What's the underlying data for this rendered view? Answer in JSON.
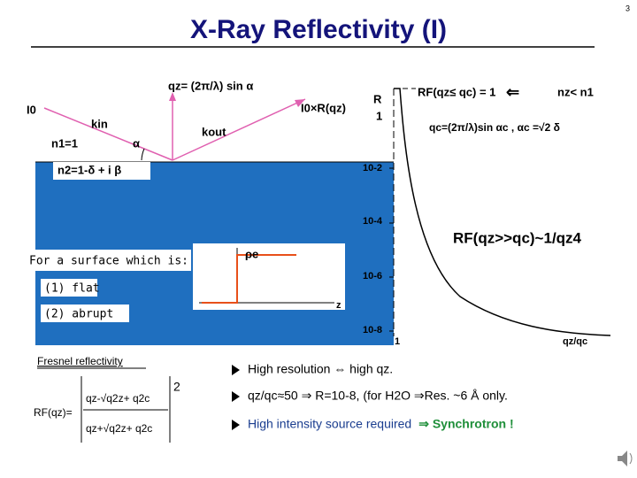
{
  "page_number": "3",
  "title": "X-Ray Reflectivity (I)",
  "diagram": {
    "qz_formula": "qz= (2π/λ) sin α",
    "incident": "I0",
    "k_in": "kin",
    "n1": "n1=1",
    "angle": "α",
    "k_out": "kout",
    "reflected": "I0×R(qz)",
    "n2": "n2=1-δ + i β"
  },
  "plot": {
    "y_label": "R",
    "y_one": "1",
    "y_ticks": [
      "10-2",
      "10-4",
      "10-6",
      "10-8"
    ],
    "x_one": "1",
    "x_label": "qz/qc",
    "rf_below": "RF(qz≤ qc) = 1",
    "implies_left": "⇐",
    "nz_condition": "nz< n1",
    "qc_def": "qc=(2π/λ)sin αc , αc =√2 δ",
    "rf_above": "RF(qz>>qc)~1/qz4"
  },
  "surface": {
    "heading": "For a surface which is:",
    "items": [
      "(1) flat",
      "(2) abrupt"
    ],
    "profile_y": "ρe",
    "profile_x": "z"
  },
  "fresnel": {
    "heading": "Fresnel reflectivity",
    "lhs": "RF(qz)=",
    "numerator": "qz-√q2z+ q2c",
    "denominator": "qz+√q2z+ q2c",
    "power": "2"
  },
  "bullets": [
    {
      "text": "High resolution ⇔ high qz."
    },
    {
      "text": "qz/qc≈50 ⇒ R=10-8, (for H2O ⇒Res. ~6 Å only."
    },
    {
      "text": "High intensity source required",
      "emphasis": "⇒ Synchrotron !"
    }
  ]
}
